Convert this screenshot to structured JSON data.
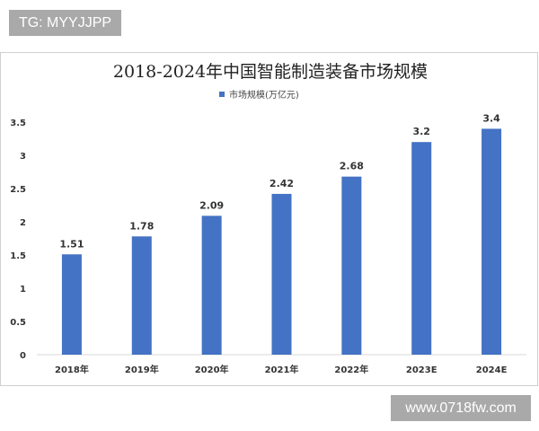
{
  "watermarks": {
    "top_left": "TG: MYYJJPP",
    "bottom_right": "www.0718fw.com"
  },
  "chart_data": {
    "type": "bar",
    "title": "2018-2024年中国智能制造装备市场规模",
    "categories": [
      "2018年",
      "2019年",
      "2020年",
      "2021年",
      "2022年",
      "2023E",
      "2024E"
    ],
    "series": [
      {
        "name": "市场规模(万亿元)",
        "values": [
          1.51,
          1.78,
          2.09,
          2.42,
          2.68,
          3.2,
          3.4
        ],
        "color": "#4472c4"
      }
    ],
    "data_labels": [
      "1.51",
      "1.78",
      "2.09",
      "2.42",
      "2.68",
      "3.2",
      "3.4"
    ],
    "yticks": [
      "0",
      "0.5",
      "1",
      "1.5",
      "2",
      "2.5",
      "3",
      "3.5"
    ],
    "ylim": [
      0,
      3.5
    ],
    "xlabel": "",
    "ylabel": "",
    "grid": false,
    "legend_position": "top"
  }
}
